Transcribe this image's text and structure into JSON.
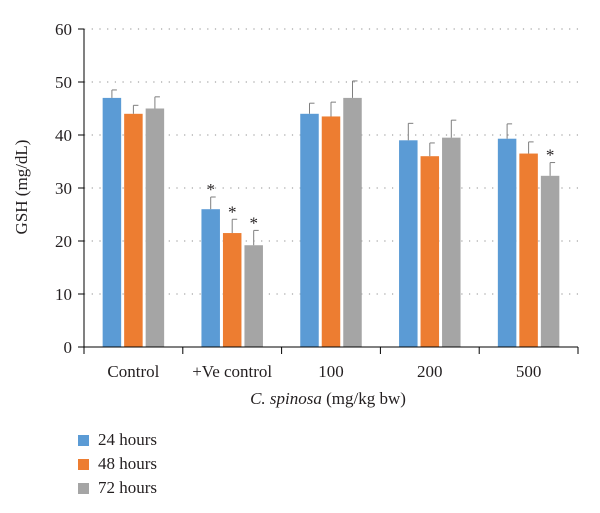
{
  "chart_data": {
    "type": "bar",
    "categories": [
      "Control",
      "+Ve control",
      "100",
      "200",
      "500"
    ],
    "series": [
      {
        "name": "24 hours",
        "color": "#5b9bd5",
        "values": [
          47,
          26,
          44,
          39,
          39.3
        ],
        "errors": [
          1.5,
          2.3,
          2,
          3.2,
          2.8
        ],
        "significant": [
          false,
          true,
          false,
          false,
          false
        ]
      },
      {
        "name": "48 hours",
        "color": "#ed7d31",
        "values": [
          44,
          21.5,
          43.5,
          36,
          36.5
        ],
        "errors": [
          1.6,
          2.6,
          2.7,
          2.5,
          2.2
        ],
        "significant": [
          false,
          true,
          false,
          false,
          false
        ]
      },
      {
        "name": "72 hours",
        "color": "#a5a5a5",
        "values": [
          45,
          19.2,
          47,
          39.5,
          32.3
        ],
        "errors": [
          2.2,
          2.8,
          3.2,
          3.3,
          2.5
        ],
        "significant": [
          false,
          true,
          false,
          false,
          true
        ]
      }
    ],
    "significance_marker": "*",
    "xlabel_italic": "C. spinosa",
    "xlabel_rest": " (mg/kg bw)",
    "ylabel": "GSH (mg/dL)",
    "ylim": [
      0,
      60
    ],
    "yticks": [
      0,
      10,
      20,
      30,
      40,
      50,
      60
    ],
    "grid": "dotted horizontal",
    "legend_placement": "bottom-left"
  }
}
